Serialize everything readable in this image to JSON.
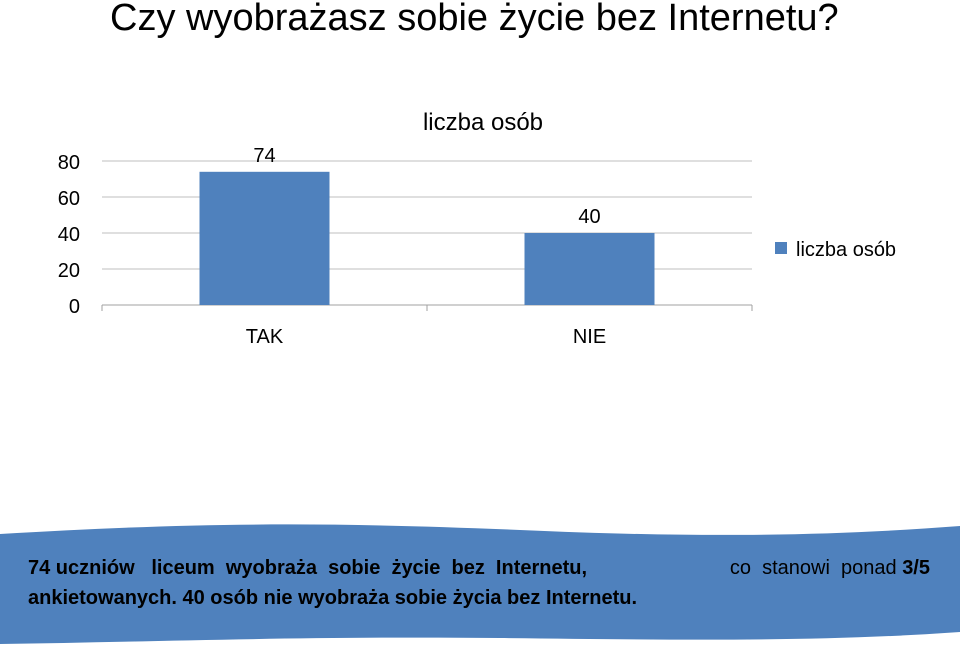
{
  "slide": {
    "title": "Czy wyobrażasz sobie życie bez Internetu?"
  },
  "chart_data": {
    "type": "bar",
    "title": "liczba osób",
    "categories": [
      "TAK",
      "NIE"
    ],
    "series": [
      {
        "name": "liczba osób",
        "values": [
          74,
          40
        ],
        "color": "#4F81BD"
      }
    ],
    "ylim": [
      0,
      80
    ],
    "yticks": [
      0,
      20,
      40,
      60,
      80
    ],
    "grid": true,
    "legend_position": "right",
    "data_labels": true,
    "xlabel": "",
    "ylabel": ""
  },
  "banner": {
    "color": "#4F81BD",
    "line1_left": "74 uczniów   liceum  wyobraża  sobie  życie  bez  Internetu,",
    "line1_right_normal": "co  stanowi  ponad",
    "line1_right_bold": "3/5",
    "line2": "ankietowanych. 40 osób nie wyobraża sobie życia bez Internetu."
  }
}
